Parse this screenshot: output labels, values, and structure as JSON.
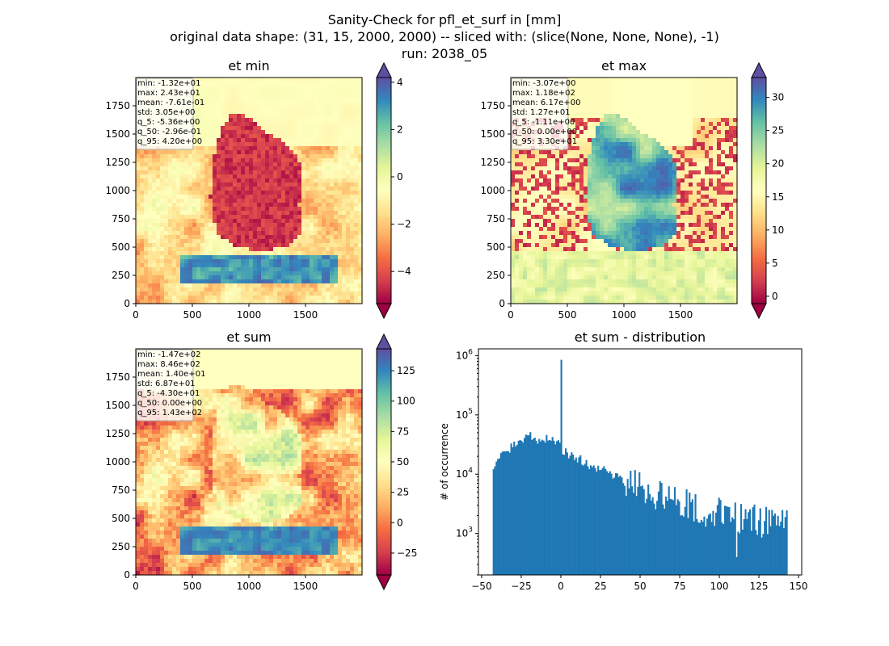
{
  "suptitle": [
    "Sanity-Check for pfl_et_surf in [mm]",
    "original data shape: (31, 15, 2000, 2000) -- sliced with: (slice(None, None, None), -1)",
    "run: 2038_05"
  ],
  "chart_data": [
    {
      "type": "heatmap",
      "title": "et min",
      "x_ticks": [
        0,
        500,
        1000,
        1500
      ],
      "y_ticks": [
        0,
        250,
        500,
        750,
        1000,
        1250,
        1500,
        1750
      ],
      "xlim": [
        0,
        2000
      ],
      "ylim": [
        0,
        2000
      ],
      "colormap": "Spectral",
      "colorbar_range": [
        -5.36,
        4.2
      ],
      "colorbar_ticks": [
        -4,
        -2,
        0,
        2,
        4
      ],
      "colorbar_extend": "both",
      "stats": [
        "min: -1.32e+01",
        "max: 2.43e+01",
        "mean: -7.61e-01",
        "std: 3.05e+00",
        "q_5: -5.36e+00",
        "q_50: -2.96e-01",
        "q_95: 4.20e+00"
      ]
    },
    {
      "type": "heatmap",
      "title": "et max",
      "x_ticks": [
        0,
        500,
        1000,
        1500
      ],
      "y_ticks": [
        0,
        250,
        500,
        750,
        1000,
        1250,
        1500,
        1750
      ],
      "xlim": [
        0,
        2000
      ],
      "ylim": [
        0,
        2000
      ],
      "colormap": "Spectral",
      "colorbar_range": [
        -1.11,
        33.0
      ],
      "colorbar_ticks": [
        0,
        5,
        10,
        15,
        20,
        25,
        30
      ],
      "colorbar_extend": "both",
      "stats": [
        "min: -3.07e+00",
        "max: 1.18e+02",
        "mean: 6.17e+00",
        "std: 1.27e+01",
        "q_5: -1.11e+00",
        "q_50: 0.00e+00",
        "q_95: 3.30e+01"
      ]
    },
    {
      "type": "heatmap",
      "title": "et sum",
      "x_ticks": [
        0,
        500,
        1000,
        1500
      ],
      "y_ticks": [
        0,
        250,
        500,
        750,
        1000,
        1250,
        1500,
        1750
      ],
      "xlim": [
        0,
        2000
      ],
      "ylim": [
        0,
        2000
      ],
      "colormap": "Spectral",
      "colorbar_range": [
        -43.0,
        143.0
      ],
      "colorbar_ticks": [
        -25,
        0,
        25,
        50,
        75,
        100,
        125
      ],
      "colorbar_extend": "both",
      "stats": [
        "min: -1.47e+02",
        "max: 8.46e+02",
        "mean: 1.40e+01",
        "std: 6.87e+01",
        "q_5: -4.30e+01",
        "q_50: 0.00e+00",
        "q_95: 1.43e+02"
      ]
    },
    {
      "type": "bar",
      "title": "et sum - distribution",
      "xlabel": "",
      "ylabel": "# of occurrence",
      "xlim": [
        -52,
        152
      ],
      "ylim": [
        200,
        1300000
      ],
      "y_scale": "log",
      "x_ticks": [
        -50,
        -25,
        0,
        25,
        50,
        75,
        100,
        125,
        150
      ],
      "y_ticks": [
        {
          "value": 1000,
          "base": "10",
          "exp": "3"
        },
        {
          "value": 10000,
          "base": "10",
          "exp": "4"
        },
        {
          "value": 100000,
          "base": "10",
          "exp": "5"
        },
        {
          "value": 1000000,
          "base": "10",
          "exp": "6"
        }
      ],
      "bin_range": [
        -43,
        143
      ],
      "bin_count": 200,
      "color": "#1f77b4",
      "spike": {
        "x": 0,
        "count": 850000
      },
      "profile": [
        [
          -43,
          13500
        ],
        [
          -40,
          17000
        ],
        [
          -35,
          22000
        ],
        [
          -30,
          30000
        ],
        [
          -25,
          40000
        ],
        [
          -22,
          46000
        ],
        [
          -18,
          40000
        ],
        [
          -12,
          38000
        ],
        [
          -6,
          37000
        ],
        [
          -2,
          32000
        ],
        [
          0,
          26000
        ],
        [
          5,
          22000
        ],
        [
          10,
          18500
        ],
        [
          20,
          14000
        ],
        [
          30,
          10500
        ],
        [
          40,
          7600
        ],
        [
          50,
          5800
        ],
        [
          60,
          4500
        ],
        [
          70,
          3600
        ],
        [
          80,
          3000
        ],
        [
          90,
          2500
        ],
        [
          100,
          2200
        ],
        [
          110,
          1900
        ],
        [
          120,
          1700
        ],
        [
          130,
          1500
        ],
        [
          143,
          1400
        ]
      ]
    }
  ]
}
